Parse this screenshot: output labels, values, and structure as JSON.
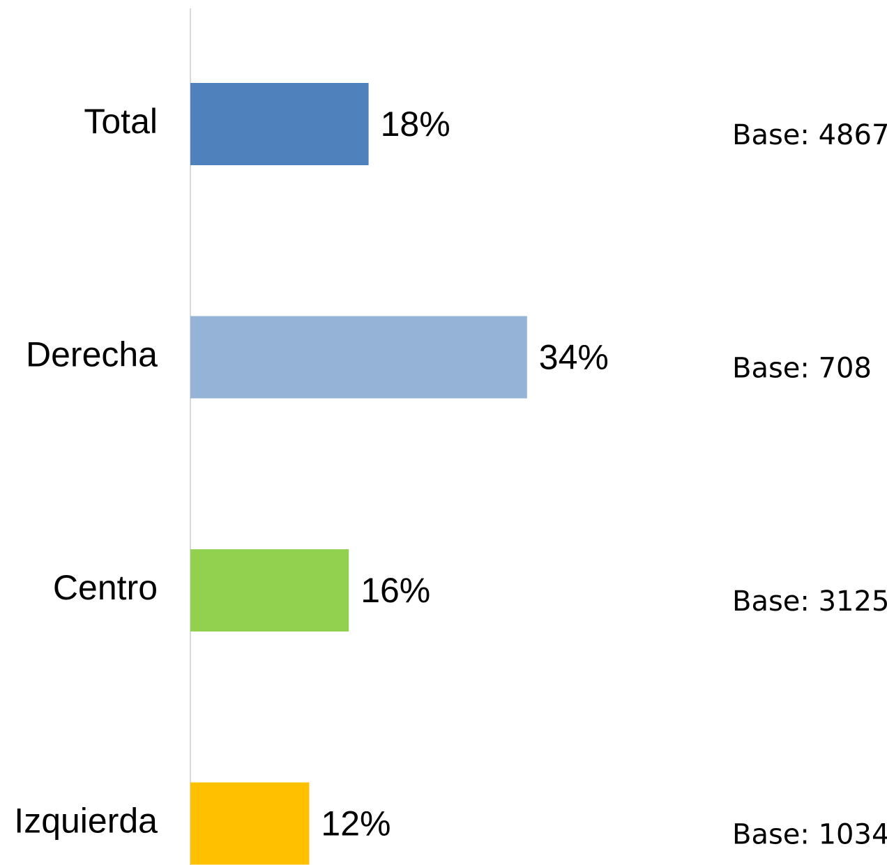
{
  "chart_data": {
    "type": "hbar",
    "categories": [
      "Total",
      "Derecha",
      "Centro",
      "Izquierda"
    ],
    "values": [
      18,
      34,
      16,
      12
    ],
    "value_labels": [
      "18%",
      "34%",
      "16%",
      "12%"
    ],
    "colors": [
      "#4f81bd",
      "#95b3d7",
      "#92d050",
      "#ffc000"
    ],
    "base_labels": [
      "Base: 4867",
      "Base: 708",
      "Base: 3125",
      "Base: 1034"
    ],
    "xlim": [
      0,
      70
    ]
  }
}
